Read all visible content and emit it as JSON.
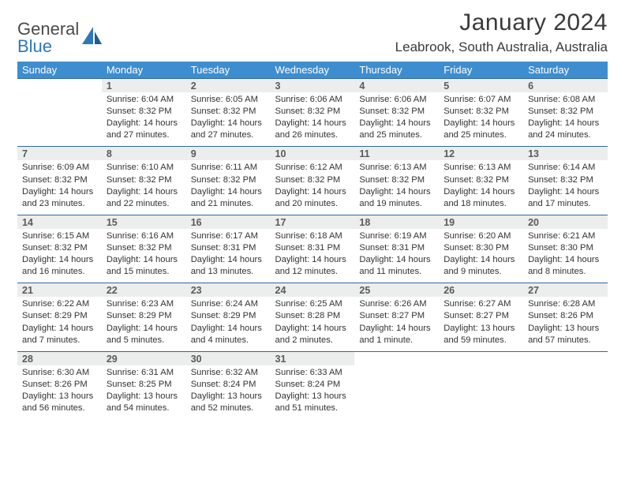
{
  "brand": {
    "part1": "General",
    "part2": "Blue"
  },
  "title": "January 2024",
  "location": "Leabrook, South Australia, Australia",
  "colors": {
    "header_bg": "#3e8ecf",
    "header_text": "#ffffff",
    "daynum_bg": "#eceded",
    "rule": "#2f6aa0",
    "brand_gray": "#4a4a4a",
    "brand_blue": "#2f77bb"
  },
  "weekdays": [
    "Sunday",
    "Monday",
    "Tuesday",
    "Wednesday",
    "Thursday",
    "Friday",
    "Saturday"
  ],
  "weeks": [
    {
      "nums": [
        "",
        "1",
        "2",
        "3",
        "4",
        "5",
        "6"
      ],
      "cells": [
        null,
        {
          "sr": "Sunrise: 6:04 AM",
          "ss": "Sunset: 8:32 PM",
          "d1": "Daylight: 14 hours",
          "d2": "and 27 minutes."
        },
        {
          "sr": "Sunrise: 6:05 AM",
          "ss": "Sunset: 8:32 PM",
          "d1": "Daylight: 14 hours",
          "d2": "and 27 minutes."
        },
        {
          "sr": "Sunrise: 6:06 AM",
          "ss": "Sunset: 8:32 PM",
          "d1": "Daylight: 14 hours",
          "d2": "and 26 minutes."
        },
        {
          "sr": "Sunrise: 6:06 AM",
          "ss": "Sunset: 8:32 PM",
          "d1": "Daylight: 14 hours",
          "d2": "and 25 minutes."
        },
        {
          "sr": "Sunrise: 6:07 AM",
          "ss": "Sunset: 8:32 PM",
          "d1": "Daylight: 14 hours",
          "d2": "and 25 minutes."
        },
        {
          "sr": "Sunrise: 6:08 AM",
          "ss": "Sunset: 8:32 PM",
          "d1": "Daylight: 14 hours",
          "d2": "and 24 minutes."
        }
      ]
    },
    {
      "nums": [
        "7",
        "8",
        "9",
        "10",
        "11",
        "12",
        "13"
      ],
      "cells": [
        {
          "sr": "Sunrise: 6:09 AM",
          "ss": "Sunset: 8:32 PM",
          "d1": "Daylight: 14 hours",
          "d2": "and 23 minutes."
        },
        {
          "sr": "Sunrise: 6:10 AM",
          "ss": "Sunset: 8:32 PM",
          "d1": "Daylight: 14 hours",
          "d2": "and 22 minutes."
        },
        {
          "sr": "Sunrise: 6:11 AM",
          "ss": "Sunset: 8:32 PM",
          "d1": "Daylight: 14 hours",
          "d2": "and 21 minutes."
        },
        {
          "sr": "Sunrise: 6:12 AM",
          "ss": "Sunset: 8:32 PM",
          "d1": "Daylight: 14 hours",
          "d2": "and 20 minutes."
        },
        {
          "sr": "Sunrise: 6:13 AM",
          "ss": "Sunset: 8:32 PM",
          "d1": "Daylight: 14 hours",
          "d2": "and 19 minutes."
        },
        {
          "sr": "Sunrise: 6:13 AM",
          "ss": "Sunset: 8:32 PM",
          "d1": "Daylight: 14 hours",
          "d2": "and 18 minutes."
        },
        {
          "sr": "Sunrise: 6:14 AM",
          "ss": "Sunset: 8:32 PM",
          "d1": "Daylight: 14 hours",
          "d2": "and 17 minutes."
        }
      ]
    },
    {
      "nums": [
        "14",
        "15",
        "16",
        "17",
        "18",
        "19",
        "20"
      ],
      "cells": [
        {
          "sr": "Sunrise: 6:15 AM",
          "ss": "Sunset: 8:32 PM",
          "d1": "Daylight: 14 hours",
          "d2": "and 16 minutes."
        },
        {
          "sr": "Sunrise: 6:16 AM",
          "ss": "Sunset: 8:32 PM",
          "d1": "Daylight: 14 hours",
          "d2": "and 15 minutes."
        },
        {
          "sr": "Sunrise: 6:17 AM",
          "ss": "Sunset: 8:31 PM",
          "d1": "Daylight: 14 hours",
          "d2": "and 13 minutes."
        },
        {
          "sr": "Sunrise: 6:18 AM",
          "ss": "Sunset: 8:31 PM",
          "d1": "Daylight: 14 hours",
          "d2": "and 12 minutes."
        },
        {
          "sr": "Sunrise: 6:19 AM",
          "ss": "Sunset: 8:31 PM",
          "d1": "Daylight: 14 hours",
          "d2": "and 11 minutes."
        },
        {
          "sr": "Sunrise: 6:20 AM",
          "ss": "Sunset: 8:30 PM",
          "d1": "Daylight: 14 hours",
          "d2": "and 9 minutes."
        },
        {
          "sr": "Sunrise: 6:21 AM",
          "ss": "Sunset: 8:30 PM",
          "d1": "Daylight: 14 hours",
          "d2": "and 8 minutes."
        }
      ]
    },
    {
      "nums": [
        "21",
        "22",
        "23",
        "24",
        "25",
        "26",
        "27"
      ],
      "cells": [
        {
          "sr": "Sunrise: 6:22 AM",
          "ss": "Sunset: 8:29 PM",
          "d1": "Daylight: 14 hours",
          "d2": "and 7 minutes."
        },
        {
          "sr": "Sunrise: 6:23 AM",
          "ss": "Sunset: 8:29 PM",
          "d1": "Daylight: 14 hours",
          "d2": "and 5 minutes."
        },
        {
          "sr": "Sunrise: 6:24 AM",
          "ss": "Sunset: 8:29 PM",
          "d1": "Daylight: 14 hours",
          "d2": "and 4 minutes."
        },
        {
          "sr": "Sunrise: 6:25 AM",
          "ss": "Sunset: 8:28 PM",
          "d1": "Daylight: 14 hours",
          "d2": "and 2 minutes."
        },
        {
          "sr": "Sunrise: 6:26 AM",
          "ss": "Sunset: 8:27 PM",
          "d1": "Daylight: 14 hours",
          "d2": "and 1 minute."
        },
        {
          "sr": "Sunrise: 6:27 AM",
          "ss": "Sunset: 8:27 PM",
          "d1": "Daylight: 13 hours",
          "d2": "and 59 minutes."
        },
        {
          "sr": "Sunrise: 6:28 AM",
          "ss": "Sunset: 8:26 PM",
          "d1": "Daylight: 13 hours",
          "d2": "and 57 minutes."
        }
      ]
    },
    {
      "nums": [
        "28",
        "29",
        "30",
        "31",
        "",
        "",
        ""
      ],
      "cells": [
        {
          "sr": "Sunrise: 6:30 AM",
          "ss": "Sunset: 8:26 PM",
          "d1": "Daylight: 13 hours",
          "d2": "and 56 minutes."
        },
        {
          "sr": "Sunrise: 6:31 AM",
          "ss": "Sunset: 8:25 PM",
          "d1": "Daylight: 13 hours",
          "d2": "and 54 minutes."
        },
        {
          "sr": "Sunrise: 6:32 AM",
          "ss": "Sunset: 8:24 PM",
          "d1": "Daylight: 13 hours",
          "d2": "and 52 minutes."
        },
        {
          "sr": "Sunrise: 6:33 AM",
          "ss": "Sunset: 8:24 PM",
          "d1": "Daylight: 13 hours",
          "d2": "and 51 minutes."
        },
        null,
        null,
        null
      ]
    }
  ]
}
